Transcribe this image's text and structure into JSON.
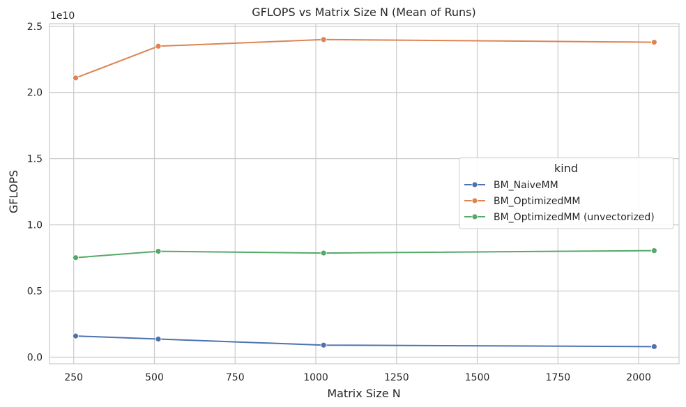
{
  "chart_data": {
    "type": "line",
    "title": "GFLOPS vs Matrix Size N (Mean of Runs)",
    "xlabel": "Matrix Size N",
    "ylabel": "GFLOPS",
    "y_offset_label": "1e10",
    "xlim": [
      175,
      2125
    ],
    "ylim": [
      -0.05,
      2.52
    ],
    "x_ticks": [
      250,
      500,
      750,
      1000,
      1250,
      1500,
      1750,
      2000
    ],
    "x_tick_labels": [
      "250",
      "500",
      "750",
      "1000",
      "1250",
      "1500",
      "1750",
      "2000"
    ],
    "y_ticks": [
      0.0,
      0.5,
      1.0,
      1.5,
      2.0,
      2.5
    ],
    "y_tick_labels": [
      "0.0",
      "0.5",
      "1.0",
      "1.5",
      "2.0",
      "2.5"
    ],
    "grid": true,
    "legend": {
      "title": "kind",
      "placement": "center-right"
    },
    "x": [
      256,
      512,
      1024,
      2048
    ],
    "series": [
      {
        "name": "BM_NaiveMM",
        "color": "#4c72b0",
        "values": [
          0.16,
          0.137,
          0.091,
          0.08
        ]
      },
      {
        "name": "BM_OptimizedMM",
        "color": "#dd8452",
        "values": [
          2.11,
          2.35,
          2.4,
          2.38
        ]
      },
      {
        "name": "BM_OptimizedMM (unvectorized)",
        "color": "#55a868",
        "values": [
          0.752,
          0.8,
          0.787,
          0.805
        ]
      }
    ]
  }
}
